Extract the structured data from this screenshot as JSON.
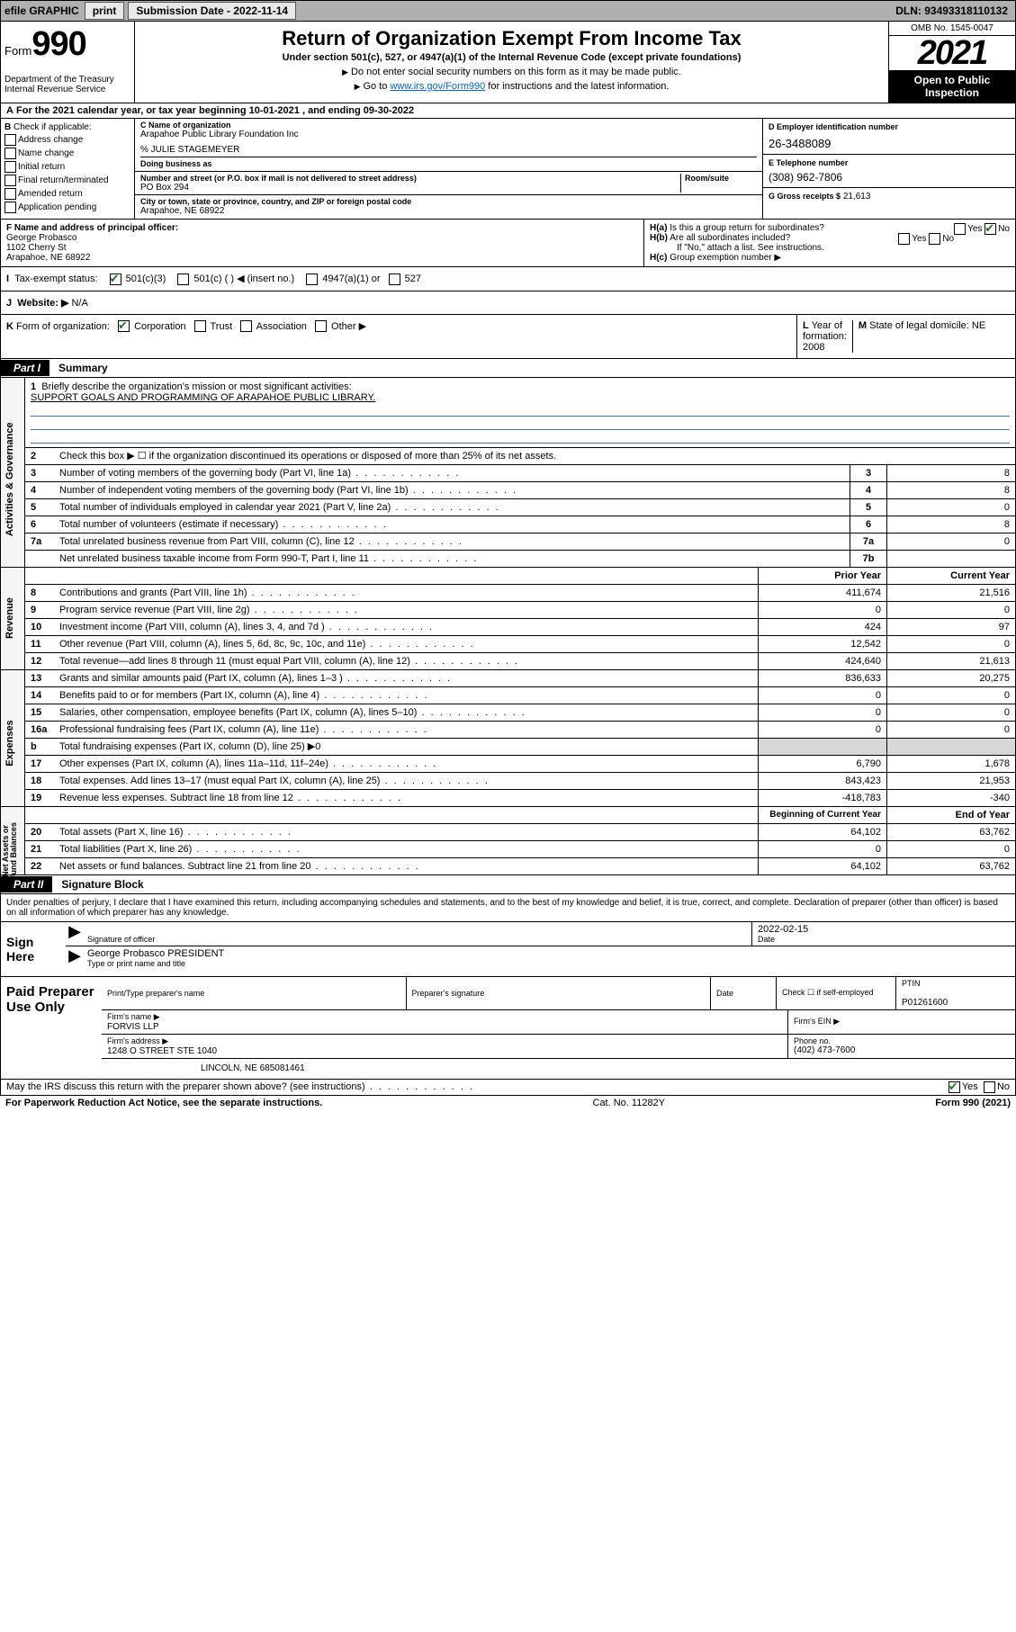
{
  "topbar": {
    "efile": "efile GRAPHIC",
    "print": "print",
    "subdate_label": "Submission Date - 2022-11-14",
    "dln_label": "DLN: 93493318110132"
  },
  "header": {
    "form_label": "Form",
    "form_num": "990",
    "title": "Return of Organization Exempt From Income Tax",
    "sub1": "Under section 501(c), 527, or 4947(a)(1) of the Internal Revenue Code (except private foundations)",
    "sub2": "Do not enter social security numbers on this form as it may be made public.",
    "sub3_pre": "Go to ",
    "sub3_link": "www.irs.gov/Form990",
    "sub3_post": " for instructions and the latest information.",
    "dept": "Department of the Treasury\nInternal Revenue Service",
    "omb": "OMB No. 1545-0047",
    "year": "2021",
    "openpub": "Open to Public\nInspection"
  },
  "period": {
    "text_a": "For the 2021 calendar year, or tax year beginning ",
    "begin": "10-01-2021",
    "text_b": " , and ending ",
    "end": "09-30-2022"
  },
  "blockB": {
    "label": "Check if applicable:",
    "opts": [
      "Address change",
      "Name change",
      "Initial return",
      "Final return/terminated",
      "Amended return",
      "Application pending"
    ]
  },
  "blockC": {
    "name_label": "C Name of organization",
    "name": "Arapahoe Public Library Foundation Inc",
    "care_label": "% JULIE STAGEMEYER",
    "dba_label": "Doing business as",
    "street_label": "Number and street (or P.O. box if mail is not delivered to street address)",
    "room_label": "Room/suite",
    "street": "PO Box 294",
    "city_label": "City or town, state or province, country, and ZIP or foreign postal code",
    "city": "Arapahoe, NE  68922"
  },
  "blockD": {
    "label": "D Employer identification number",
    "ein": "26-3488089"
  },
  "blockE": {
    "label": "E Telephone number",
    "phone": "(308) 962-7806"
  },
  "blockG": {
    "label": "G Gross receipts $",
    "amount": "21,613"
  },
  "blockF": {
    "label": "F Name and address of principal officer:",
    "name": "George Probasco",
    "addr1": "1102 Cherry St",
    "addr2": "Arapahoe, NE  68922"
  },
  "blockH": {
    "a": "Is this a group return for subordinates?",
    "a_ans": "No",
    "b": "Are all subordinates included?",
    "b_note": "If \"No,\" attach a list. See instructions.",
    "c": "Group exemption number ▶"
  },
  "blockI": {
    "label": "Tax-exempt status:",
    "opts": [
      "501(c)(3)",
      "501(c) (   ) ◀ (insert no.)",
      "4947(a)(1) or",
      "527"
    ]
  },
  "blockJ": {
    "label": "Website: ▶",
    "value": "N/A"
  },
  "blockK": {
    "label": "Form of organization:",
    "opts": [
      "Corporation",
      "Trust",
      "Association",
      "Other ▶"
    ]
  },
  "blockL": {
    "label": "Year of formation:",
    "value": "2008"
  },
  "blockM": {
    "label": "State of legal domicile:",
    "value": "NE"
  },
  "partI": {
    "tab": "Part I",
    "label": "Summary"
  },
  "gov": {
    "vtab": "Activities & Governance",
    "l1_label": "Briefly describe the organization's mission or most significant activities:",
    "l1_text": "SUPPORT GOALS AND PROGRAMMING OF ARAPAHOE PUBLIC LIBRARY.",
    "l2": "Check this box ▶ ☐  if the organization discontinued its operations or disposed of more than 25% of its net assets.",
    "l3": "Number of voting members of the governing body (Part VI, line 1a)",
    "l3v": "8",
    "l4": "Number of independent voting members of the governing body (Part VI, line 1b)",
    "l4v": "8",
    "l5": "Total number of individuals employed in calendar year 2021 (Part V, line 2a)",
    "l5v": "0",
    "l6": "Total number of volunteers (estimate if necessary)",
    "l6v": "8",
    "l7a": "Total unrelated business revenue from Part VIII, column (C), line 12",
    "l7av": "0",
    "l7b": "Net unrelated business taxable income from Form 990-T, Part I, line 11",
    "l7bv": ""
  },
  "rev": {
    "vtab": "Revenue",
    "hdr_prior": "Prior Year",
    "hdr_curr": "Current Year",
    "rows": [
      {
        "n": "8",
        "d": "Contributions and grants (Part VIII, line 1h)",
        "p": "411,674",
        "c": "21,516"
      },
      {
        "n": "9",
        "d": "Program service revenue (Part VIII, line 2g)",
        "p": "0",
        "c": "0"
      },
      {
        "n": "10",
        "d": "Investment income (Part VIII, column (A), lines 3, 4, and 7d )",
        "p": "424",
        "c": "97"
      },
      {
        "n": "11",
        "d": "Other revenue (Part VIII, column (A), lines 5, 6d, 8c, 9c, 10c, and 11e)",
        "p": "12,542",
        "c": "0"
      },
      {
        "n": "12",
        "d": "Total revenue—add lines 8 through 11 (must equal Part VIII, column (A), line 12)",
        "p": "424,640",
        "c": "21,613"
      }
    ]
  },
  "exp": {
    "vtab": "Expenses",
    "rows": [
      {
        "n": "13",
        "d": "Grants and similar amounts paid (Part IX, column (A), lines 1–3 )",
        "p": "836,633",
        "c": "20,275"
      },
      {
        "n": "14",
        "d": "Benefits paid to or for members (Part IX, column (A), line 4)",
        "p": "0",
        "c": "0"
      },
      {
        "n": "15",
        "d": "Salaries, other compensation, employee benefits (Part IX, column (A), lines 5–10)",
        "p": "0",
        "c": "0"
      },
      {
        "n": "16a",
        "d": "Professional fundraising fees (Part IX, column (A), line 11e)",
        "p": "0",
        "c": "0"
      },
      {
        "n": "b",
        "d": "Total fundraising expenses (Part IX, column (D), line 25) ▶0",
        "p": "",
        "c": "",
        "shaded": true
      },
      {
        "n": "17",
        "d": "Other expenses (Part IX, column (A), lines 11a–11d, 11f–24e)",
        "p": "6,790",
        "c": "1,678"
      },
      {
        "n": "18",
        "d": "Total expenses. Add lines 13–17 (must equal Part IX, column (A), line 25)",
        "p": "843,423",
        "c": "21,953"
      },
      {
        "n": "19",
        "d": "Revenue less expenses. Subtract line 18 from line 12",
        "p": "-418,783",
        "c": "-340"
      }
    ]
  },
  "net": {
    "vtab": "Net Assets or\nFund Balances",
    "hdr_begin": "Beginning of Current Year",
    "hdr_end": "End of Year",
    "rows": [
      {
        "n": "20",
        "d": "Total assets (Part X, line 16)",
        "p": "64,102",
        "c": "63,762"
      },
      {
        "n": "21",
        "d": "Total liabilities (Part X, line 26)",
        "p": "0",
        "c": "0"
      },
      {
        "n": "22",
        "d": "Net assets or fund balances. Subtract line 21 from line 20",
        "p": "64,102",
        "c": "63,762"
      }
    ]
  },
  "partII": {
    "tab": "Part II",
    "label": "Signature Block"
  },
  "decl": "Under penalties of perjury, I declare that I have examined this return, including accompanying schedules and statements, and to the best of my knowledge and belief, it is true, correct, and complete. Declaration of preparer (other than officer) is based on all information of which preparer has any knowledge.",
  "sign": {
    "label": "Sign Here",
    "sig_label": "Signature of officer",
    "date_label": "Date",
    "date": "2022-02-15",
    "name": "George Probasco PRESIDENT",
    "name_label": "Type or print name and title"
  },
  "preparer": {
    "label": "Paid Preparer Use Only",
    "c1": "Print/Type preparer's name",
    "c2": "Preparer's signature",
    "c3": "Date",
    "c4": "Check ☐ if self-employed",
    "c5_label": "PTIN",
    "c5": "P01261600",
    "firm_label": "Firm's name    ▶",
    "firm": "FORVIS LLP",
    "firm_ein_label": "Firm's EIN ▶",
    "addr_label": "Firm's address ▶",
    "addr1": "1248 O STREET STE 1040",
    "addr2": "LINCOLN, NE  685081461",
    "phone_label": "Phone no.",
    "phone": "(402) 473-7600"
  },
  "discuss": {
    "text": "May the IRS discuss this return with the preparer shown above? (see instructions)",
    "yes": "Yes",
    "no": "No"
  },
  "footer": {
    "left": "For Paperwork Reduction Act Notice, see the separate instructions.",
    "mid": "Cat. No. 11282Y",
    "right": "Form 990 (2021)"
  }
}
